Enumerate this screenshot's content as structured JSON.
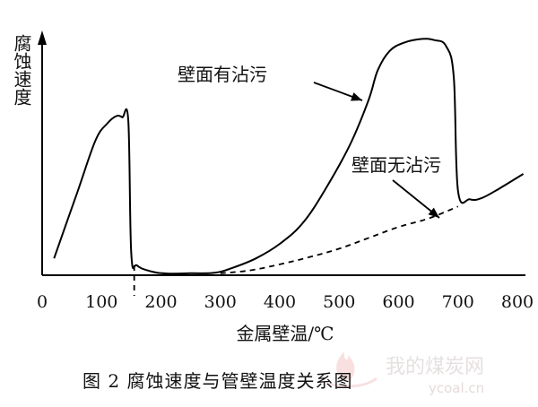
{
  "chart_data": {
    "type": "line",
    "xlabel": "金属壁温/℃",
    "ylabel": "腐蚀速度",
    "xlim": [
      0,
      800
    ],
    "x_ticks": [
      0,
      100,
      200,
      300,
      400,
      500,
      600,
      700,
      800
    ],
    "y_ticks": "none",
    "grid": false,
    "caption": "图 2   腐蚀速度与管壁温度关系图",
    "series": [
      {
        "name": "壁面有沾污",
        "style": "solid",
        "points": [
          [
            20,
            0.07
          ],
          [
            60,
            0.35
          ],
          [
            90,
            0.56
          ],
          [
            110,
            0.63
          ],
          [
            125,
            0.66
          ],
          [
            135,
            0.655
          ],
          [
            145,
            0.64
          ],
          [
            150,
            0.09
          ],
          [
            160,
            0.04
          ],
          [
            185,
            0.015
          ],
          [
            210,
            0.007
          ],
          [
            250,
            0.008
          ],
          [
            290,
            0.01
          ],
          [
            320,
            0.03
          ],
          [
            360,
            0.07
          ],
          [
            400,
            0.13
          ],
          [
            440,
            0.22
          ],
          [
            480,
            0.37
          ],
          [
            520,
            0.55
          ],
          [
            550,
            0.73
          ],
          [
            565,
            0.85
          ],
          [
            585,
            0.93
          ],
          [
            610,
            0.965
          ],
          [
            640,
            0.98
          ],
          [
            660,
            0.975
          ],
          [
            680,
            0.95
          ],
          [
            693,
            0.82
          ],
          [
            700,
            0.35
          ],
          [
            720,
            0.315
          ],
          [
            740,
            0.32
          ],
          [
            770,
            0.36
          ],
          [
            810,
            0.42
          ]
        ]
      },
      {
        "name": "壁面无沾污",
        "style": "dashed",
        "points": [
          [
            300,
            0.008
          ],
          [
            350,
            0.02
          ],
          [
            400,
            0.045
          ],
          [
            450,
            0.075
          ],
          [
            500,
            0.11
          ],
          [
            550,
            0.155
          ],
          [
            600,
            0.2
          ],
          [
            650,
            0.235
          ],
          [
            700,
            0.285
          ]
        ]
      }
    ],
    "annotations": [
      {
        "text": "壁面有沾污",
        "target_series": "壁面有沾污"
      },
      {
        "text": "壁面无沾污",
        "target_series": "壁面无沾污"
      }
    ],
    "reference_lines": [
      {
        "x": 155,
        "style": "dashed"
      }
    ]
  },
  "watermark": {
    "brand": "我的煤炭网",
    "url": "ycoal.cn"
  }
}
